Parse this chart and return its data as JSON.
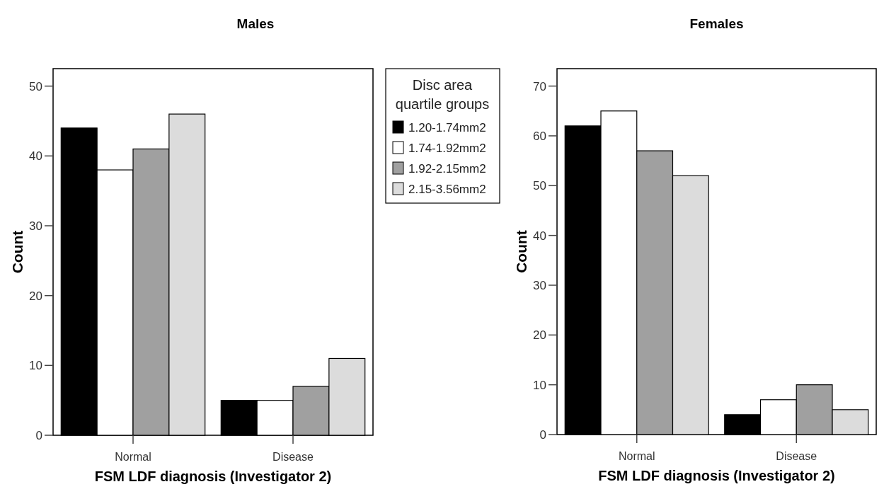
{
  "chart_data": [
    {
      "type": "bar",
      "title": "Males",
      "xlabel": "FSM LDF diagnosis (Investigator 2)",
      "ylabel": "Count",
      "legend_title": "Disc area quartile groups",
      "legend": "right",
      "categories": [
        "Normal",
        "Disease"
      ],
      "ylim": [
        0,
        52.5
      ],
      "yticks": [
        0,
        10,
        20,
        30,
        40,
        50
      ],
      "grid": false,
      "series": [
        {
          "name": "1.20-1.74mm2",
          "color": "#000000",
          "values": [
            44,
            5
          ]
        },
        {
          "name": "1.74-1.92mm2",
          "color": "#ffffff",
          "values": [
            38,
            5
          ]
        },
        {
          "name": "1.92-2.15mm2",
          "color": "#a0a0a0",
          "values": [
            41,
            7
          ]
        },
        {
          "name": "2.15-3.56mm2",
          "color": "#dcdcdc",
          "values": [
            46,
            11
          ]
        }
      ]
    },
    {
      "type": "bar",
      "title": "Females",
      "xlabel": "FSM LDF diagnosis (Investigator 2)",
      "ylabel": "Count",
      "legend": false,
      "categories": [
        "Normal",
        "Disease"
      ],
      "ylim": [
        0,
        73.5
      ],
      "yticks": [
        0,
        10,
        20,
        30,
        40,
        50,
        60,
        70
      ],
      "grid": false,
      "series": [
        {
          "color": "#000000",
          "values": [
            62,
            4
          ]
        },
        {
          "color": "#ffffff",
          "values": [
            65,
            7
          ]
        },
        {
          "color": "#a0a0a0",
          "values": [
            57,
            10
          ]
        },
        {
          "color": "#dcdcdc",
          "values": [
            52,
            5
          ]
        }
      ]
    }
  ]
}
